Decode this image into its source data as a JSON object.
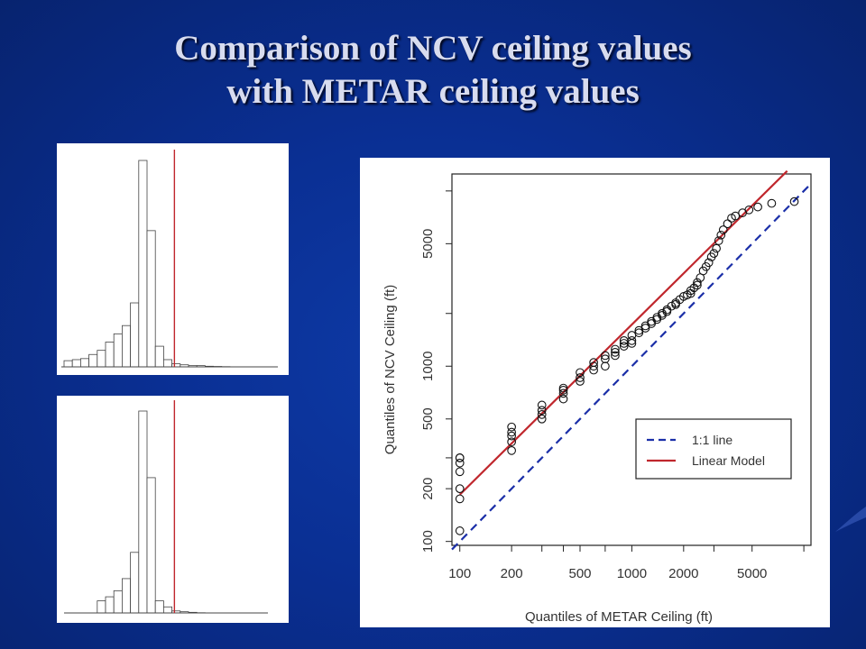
{
  "slide": {
    "title_line1": "Comparison of NCV ceiling values",
    "title_line2": "with METAR ceiling values"
  },
  "colors": {
    "background": "#0a2f93",
    "title_text": "#d8dcef",
    "red_line": "#c0272d",
    "blue_line": "#1b2fa8"
  },
  "histograms": [
    {
      "type": "bar",
      "name": "top",
      "counts": [
        3,
        3.5,
        4,
        6,
        8,
        12,
        16,
        20,
        31,
        100,
        66,
        10,
        3.5,
        1.5,
        1,
        0.6,
        0.6,
        0.3,
        0.2,
        0.1
      ],
      "reference_bin": 13.3,
      "ymax": 100
    },
    {
      "type": "bar",
      "name": "bottom",
      "counts": [
        0,
        0,
        0,
        0,
        6,
        8,
        11,
        17,
        30,
        100,
        67,
        6,
        3,
        1,
        0.6,
        0.3,
        0.1,
        0,
        0,
        0
      ],
      "reference_bin": 13.3,
      "ymax": 100
    }
  ],
  "chart_data": {
    "type": "scatter",
    "xlabel": "Quantiles of METAR Ceiling (ft)",
    "ylabel": "Quantiles of NCV Ceiling (ft)",
    "xscale": "log",
    "yscale": "log",
    "xlim": [
      90,
      11000
    ],
    "ylim": [
      95,
      12500
    ],
    "xticks": [
      100,
      200,
      500,
      1000,
      2000,
      5000
    ],
    "yticks": [
      100,
      200,
      500,
      1000,
      5000
    ],
    "xtick_labels": [
      "100",
      "200",
      "500",
      "1000",
      "2000",
      "5000"
    ],
    "ytick_labels": [
      "100",
      "200",
      "500",
      "1000",
      "5000"
    ],
    "points": {
      "x": [
        100,
        100,
        100,
        100,
        100,
        100,
        100,
        200,
        200,
        200,
        200,
        200,
        300,
        300,
        300,
        300,
        400,
        400,
        400,
        400,
        500,
        500,
        500,
        600,
        600,
        600,
        700,
        700,
        700,
        800,
        800,
        800,
        900,
        900,
        900,
        1000,
        1000,
        1000,
        1100,
        1100,
        1200,
        1200,
        1300,
        1300,
        1400,
        1400,
        1500,
        1500,
        1600,
        1600,
        1700,
        1800,
        1800,
        1900,
        2000,
        2100,
        2200,
        2200,
        2300,
        2400,
        2400,
        2500,
        2600,
        2700,
        2800,
        2900,
        3000,
        3100,
        3200,
        3300,
        3400,
        3600,
        3800,
        4000,
        4400,
        4800,
        5400,
        6500,
        8800
      ],
      "y": [
        115,
        175,
        200,
        250,
        280,
        300,
        300,
        330,
        370,
        400,
        420,
        450,
        500,
        530,
        560,
        600,
        650,
        700,
        730,
        750,
        820,
        860,
        920,
        950,
        1000,
        1050,
        1000,
        1100,
        1150,
        1150,
        1200,
        1250,
        1300,
        1350,
        1400,
        1350,
        1400,
        1500,
        1550,
        1600,
        1650,
        1700,
        1750,
        1800,
        1850,
        1900,
        1950,
        2000,
        2050,
        2100,
        2200,
        2250,
        2300,
        2400,
        2500,
        2550,
        2600,
        2700,
        2800,
        2900,
        3000,
        3200,
        3500,
        3700,
        3900,
        4200,
        4400,
        4700,
        5200,
        5600,
        6000,
        6500,
        7000,
        7200,
        7500,
        7800,
        8100,
        8500,
        8700
      ]
    },
    "series": [
      {
        "name": "1:1 line",
        "style": "dashed",
        "color": "#1b2fa8",
        "x": [
          90,
          11000
        ],
        "y": [
          90,
          11000
        ]
      },
      {
        "name": "Linear Model",
        "style": "solid",
        "color": "#c0272d",
        "x": [
          100,
          8000
        ],
        "y": [
          185,
          13000
        ]
      }
    ],
    "legend": {
      "position": "bottom-right",
      "entries": [
        "1:1 line",
        "Linear Model"
      ]
    }
  }
}
